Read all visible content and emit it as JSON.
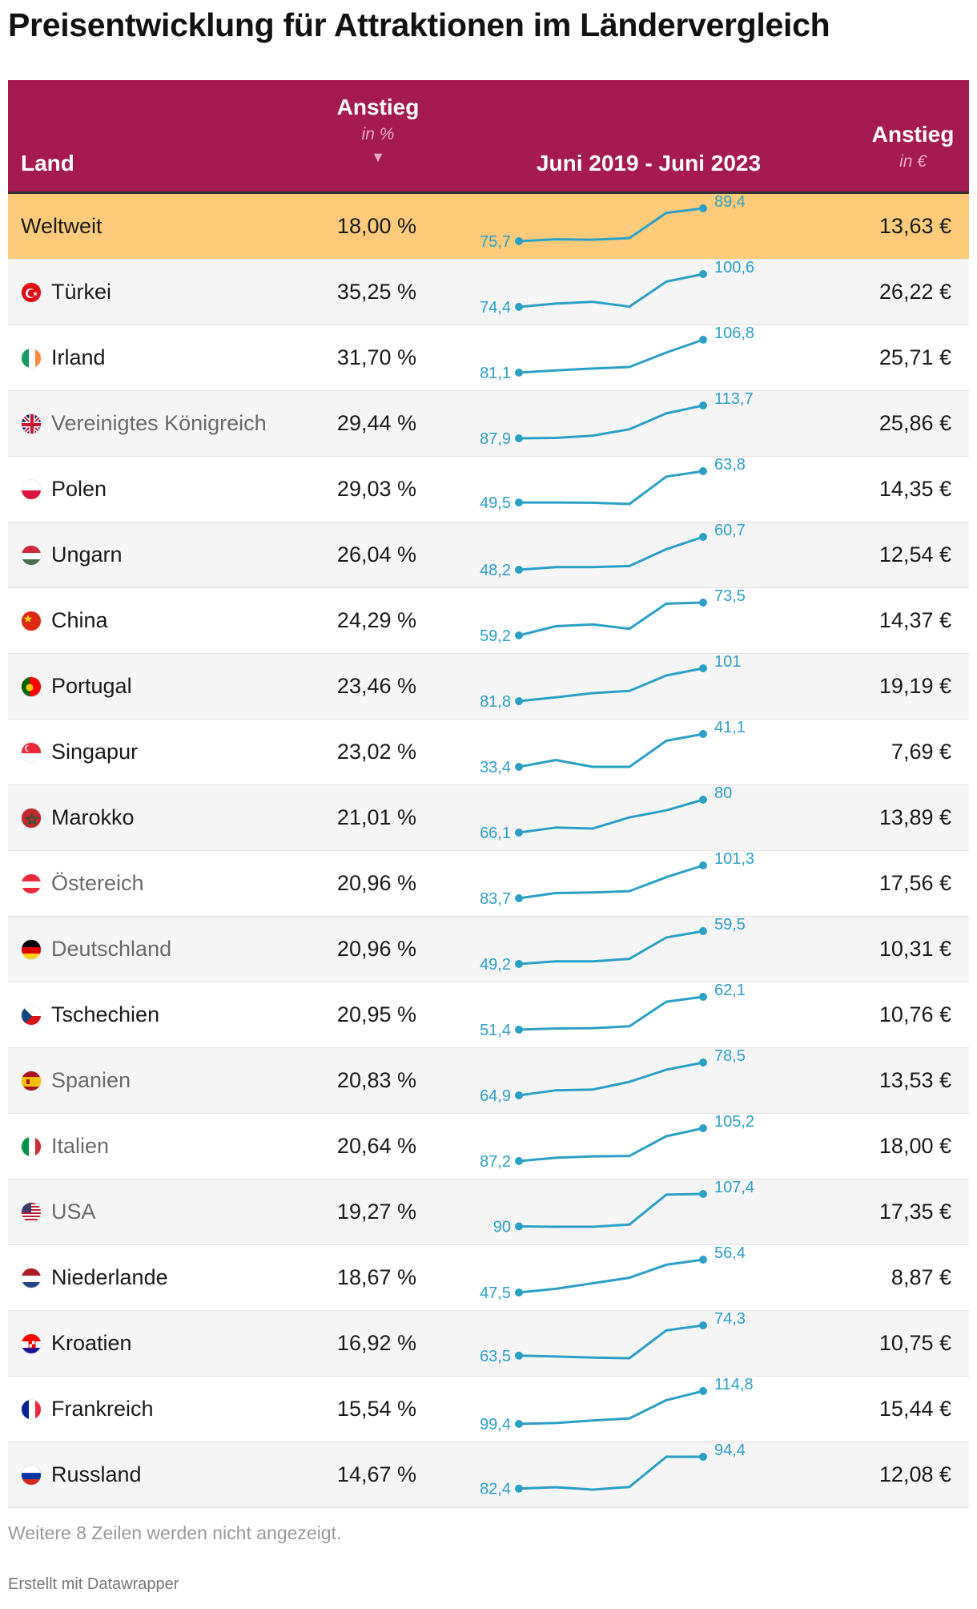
{
  "title": "Preisentwicklung für Attraktionen im Ländervergleich",
  "header": {
    "land": "Land",
    "pct_title": "Anstieg",
    "pct_sub": "in %",
    "sort_glyph": "▼",
    "period": "Juni 2019 - Juni 2023",
    "eur_title": "Anstieg",
    "eur_sub": "in €"
  },
  "colors": {
    "header_bg": "#a51a50",
    "highlight_bg": "#fecb7a",
    "line": "#2aa0c7"
  },
  "chart_data": {
    "type": "table",
    "columns": [
      "Land",
      "Anstieg in %",
      "Juni 2019 - Juni 2023",
      "Anstieg in €"
    ],
    "rows": [
      {
        "land": "Weltweit",
        "flag": "globe",
        "pct": "18,00 %",
        "eur": "13,63 €",
        "start_label": "75,7",
        "end_label": "89,4",
        "series": [
          75.7,
          76.5,
          76.3,
          77.0,
          87.5,
          89.4
        ],
        "highlight": true,
        "muted": false
      },
      {
        "land": "Türkei",
        "flag": "tr",
        "pct": "35,25 %",
        "eur": "26,22 €",
        "start_label": "74,4",
        "end_label": "100,6",
        "series": [
          74.4,
          77.0,
          78.5,
          74.6,
          94.5,
          100.6
        ],
        "highlight": false,
        "muted": false
      },
      {
        "land": "Irland",
        "flag": "ie",
        "pct": "31,70 %",
        "eur": "25,71 €",
        "start_label": "81,1",
        "end_label": "106,8",
        "series": [
          81.1,
          82.8,
          84.3,
          85.5,
          96.8,
          106.8
        ],
        "highlight": false,
        "muted": false
      },
      {
        "land": "Vereinigtes Königreich",
        "flag": "gb",
        "pct": "29,44 %",
        "eur": "25,86 €",
        "start_label": "87,9",
        "end_label": "113,7",
        "series": [
          87.9,
          88.2,
          90.0,
          95.0,
          107.5,
          113.7
        ],
        "highlight": false,
        "muted": true
      },
      {
        "land": "Polen",
        "flag": "pl",
        "pct": "29,03 %",
        "eur": "14,35 €",
        "start_label": "49,5",
        "end_label": "63,8",
        "series": [
          49.5,
          49.5,
          49.4,
          48.8,
          61.3,
          63.8
        ],
        "highlight": false,
        "muted": false
      },
      {
        "land": "Ungarn",
        "flag": "hu",
        "pct": "26,04 %",
        "eur": "12,54 €",
        "start_label": "48,2",
        "end_label": "60,7",
        "series": [
          48.2,
          49.2,
          49.2,
          49.6,
          56.0,
          60.7
        ],
        "highlight": false,
        "muted": false
      },
      {
        "land": "China",
        "flag": "cn",
        "pct": "24,29 %",
        "eur": "14,37 €",
        "start_label": "59,2",
        "end_label": "73,5",
        "series": [
          59.2,
          63.2,
          64.0,
          62.1,
          73.0,
          73.5
        ],
        "highlight": false,
        "muted": false
      },
      {
        "land": "Portugal",
        "flag": "pt",
        "pct": "23,46 %",
        "eur": "19,19 €",
        "start_label": "81,8",
        "end_label": "101",
        "series": [
          81.8,
          84.0,
          86.5,
          87.8,
          96.8,
          101.0
        ],
        "highlight": false,
        "muted": false
      },
      {
        "land": "Singapur",
        "flag": "sg",
        "pct": "23,02 %",
        "eur": "7,69 €",
        "start_label": "33,4",
        "end_label": "41,1",
        "series": [
          33.4,
          35.0,
          33.4,
          33.4,
          39.5,
          41.1
        ],
        "highlight": false,
        "muted": false
      },
      {
        "land": "Marokko",
        "flag": "ma",
        "pct": "21,01 %",
        "eur": "13,89 €",
        "start_label": "66,1",
        "end_label": "80",
        "series": [
          66.1,
          68.2,
          67.8,
          72.5,
          75.5,
          80.0
        ],
        "highlight": false,
        "muted": false
      },
      {
        "land": "Östereich",
        "flag": "at",
        "pct": "20,96 %",
        "eur": "17,56 €",
        "start_label": "83,7",
        "end_label": "101,3",
        "series": [
          83.7,
          86.5,
          86.8,
          87.5,
          95.0,
          101.3
        ],
        "highlight": false,
        "muted": true
      },
      {
        "land": "Deutschland",
        "flag": "de",
        "pct": "20,96 %",
        "eur": "10,31 €",
        "start_label": "49,2",
        "end_label": "59,5",
        "series": [
          49.2,
          50.0,
          50.0,
          50.8,
          57.5,
          59.5
        ],
        "highlight": false,
        "muted": true
      },
      {
        "land": "Tschechien",
        "flag": "cz",
        "pct": "20,95 %",
        "eur": "10,76 €",
        "start_label": "51,4",
        "end_label": "62,1",
        "series": [
          51.4,
          51.8,
          51.9,
          52.5,
          60.5,
          62.1
        ],
        "highlight": false,
        "muted": false
      },
      {
        "land": "Spanien",
        "flag": "es",
        "pct": "20,83 %",
        "eur": "13,53 €",
        "start_label": "64,9",
        "end_label": "78,5",
        "series": [
          64.9,
          67.0,
          67.3,
          70.5,
          75.5,
          78.5
        ],
        "highlight": false,
        "muted": true
      },
      {
        "land": "Italien",
        "flag": "it",
        "pct": "20,64 %",
        "eur": "18,00 €",
        "start_label": "87,2",
        "end_label": "105,2",
        "series": [
          87.2,
          89.0,
          89.8,
          90.0,
          100.8,
          105.2
        ],
        "highlight": false,
        "muted": true
      },
      {
        "land": "USA",
        "flag": "us",
        "pct": "19,27 %",
        "eur": "17,35 €",
        "start_label": "90",
        "end_label": "107,4",
        "series": [
          90.0,
          89.8,
          89.8,
          91.0,
          107.0,
          107.4
        ],
        "highlight": false,
        "muted": true
      },
      {
        "land": "Niederlande",
        "flag": "nl",
        "pct": "18,67 %",
        "eur": "8,87 €",
        "start_label": "47,5",
        "end_label": "56,4",
        "series": [
          47.5,
          48.5,
          50.0,
          51.5,
          55.0,
          56.4
        ],
        "highlight": false,
        "muted": false
      },
      {
        "land": "Kroatien",
        "flag": "hr",
        "pct": "16,92 %",
        "eur": "10,75 €",
        "start_label": "63,5",
        "end_label": "74,3",
        "series": [
          63.5,
          63.2,
          62.8,
          62.6,
          72.5,
          74.3
        ],
        "highlight": false,
        "muted": false
      },
      {
        "land": "Frankreich",
        "flag": "fr",
        "pct": "15,54 %",
        "eur": "15,44 €",
        "start_label": "99,4",
        "end_label": "114,8",
        "series": [
          99.4,
          99.8,
          101.0,
          102.0,
          110.5,
          114.8
        ],
        "highlight": false,
        "muted": false
      },
      {
        "land": "Russland",
        "flag": "ru",
        "pct": "14,67 %",
        "eur": "12,08 €",
        "start_label": "82,4",
        "end_label": "94,4",
        "series": [
          82.4,
          82.9,
          82.0,
          83.0,
          94.4,
          94.4
        ],
        "highlight": false,
        "muted": false
      }
    ]
  },
  "footnote": "Weitere 8 Zeilen werden nicht angezeigt.",
  "credit": "Erstellt mit Datawrapper"
}
